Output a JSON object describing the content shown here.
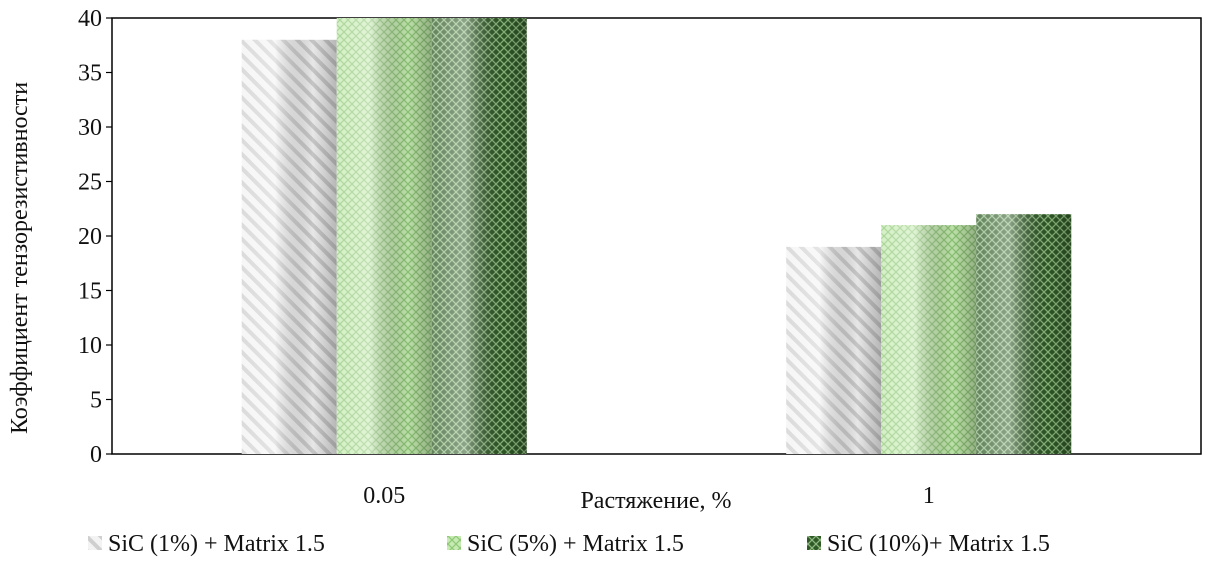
{
  "chart_data": {
    "type": "bar",
    "title": "",
    "xlabel": "Растяжение, %",
    "ylabel": "Коэффициент тензорезистивности",
    "categories": [
      "0.05",
      "1"
    ],
    "ylim": [
      0,
      40
    ],
    "yticks": [
      0,
      5,
      10,
      15,
      20,
      25,
      30,
      35,
      40
    ],
    "grid": false,
    "legend_position": "bottom",
    "series": [
      {
        "name": "SiC (1%) + Matrix 1.5",
        "values": [
          38,
          19
        ],
        "color": "#e8e8e8",
        "pattern": "diagonal-stripes"
      },
      {
        "name": "SiC (5%) + Matrix 1.5",
        "values": [
          41,
          21
        ],
        "color": "#b5e0a0",
        "pattern": "light-crosshatch"
      },
      {
        "name": "SiC (10%)+ Matrix 1.5",
        "values": [
          41,
          22
        ],
        "color": "#3f6b35",
        "pattern": "dark-crosshatch"
      }
    ]
  }
}
